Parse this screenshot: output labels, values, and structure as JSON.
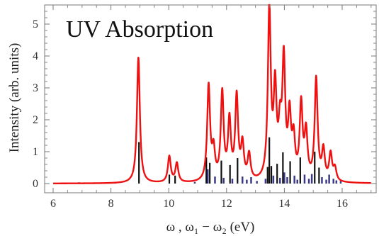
{
  "chart_data": {
    "type": "line",
    "title": "UV Absorption",
    "xlabel": "ω , ω₁ − ω₂ (eV)",
    "ylabel": "Intensity (arb. units)",
    "xlim": [
      6,
      17
    ],
    "ylim": [
      0,
      5.6
    ],
    "x_ticks": [
      6,
      8,
      10,
      12,
      14,
      16
    ],
    "y_ticks": [
      0,
      1,
      2,
      3,
      4,
      5
    ],
    "x_tick_labels": [
      "6",
      "8",
      "10",
      "12",
      "14",
      "16"
    ],
    "y_tick_labels": [
      "0",
      "1",
      "2",
      "3",
      "4",
      "5"
    ],
    "grid": false,
    "colors": {
      "spectrum": "#ee1111",
      "stick_bright": "#111111",
      "stick_dark": "#3a3a88"
    },
    "series": [
      {
        "type": "lorentzian_spectrum",
        "line_width_ev": 0.06,
        "peaks": [
          {
            "x": 8.95,
            "y": 3.95
          },
          {
            "x": 10.02,
            "y": 0.82
          },
          {
            "x": 10.28,
            "y": 0.6
          },
          {
            "x": 11.38,
            "y": 2.98
          },
          {
            "x": 11.55,
            "y": 0.9
          },
          {
            "x": 11.85,
            "y": 2.75
          },
          {
            "x": 12.1,
            "y": 1.85
          },
          {
            "x": 12.35,
            "y": 2.62
          },
          {
            "x": 12.55,
            "y": 1.1
          },
          {
            "x": 12.78,
            "y": 0.8
          },
          {
            "x": 13.48,
            "y": 5.35
          },
          {
            "x": 13.68,
            "y": 2.75
          },
          {
            "x": 13.85,
            "y": 1.4
          },
          {
            "x": 13.98,
            "y": 3.65
          },
          {
            "x": 14.18,
            "y": 1.9
          },
          {
            "x": 14.32,
            "y": 1.2
          },
          {
            "x": 14.58,
            "y": 2.35
          },
          {
            "x": 14.75,
            "y": 1.45
          },
          {
            "x": 15.1,
            "y": 3.2
          },
          {
            "x": 15.35,
            "y": 0.95
          },
          {
            "x": 15.6,
            "y": 0.85
          },
          {
            "x": 15.75,
            "y": 0.4
          }
        ]
      },
      {
        "type": "sticks",
        "bright": [
          {
            "x": 8.97,
            "y": 1.3
          },
          {
            "x": 10.02,
            "y": 0.28
          },
          {
            "x": 10.22,
            "y": 0.25
          },
          {
            "x": 11.3,
            "y": 0.82
          },
          {
            "x": 11.42,
            "y": 0.65
          },
          {
            "x": 11.82,
            "y": 0.72
          },
          {
            "x": 12.12,
            "y": 0.58
          },
          {
            "x": 12.38,
            "y": 0.8
          },
          {
            "x": 13.42,
            "y": 0.52
          },
          {
            "x": 13.48,
            "y": 1.45
          },
          {
            "x": 13.55,
            "y": 0.55
          },
          {
            "x": 13.75,
            "y": 0.62
          },
          {
            "x": 13.95,
            "y": 0.98
          },
          {
            "x": 14.2,
            "y": 0.7
          },
          {
            "x": 14.55,
            "y": 0.82
          },
          {
            "x": 15.05,
            "y": 1.0
          },
          {
            "x": 15.2,
            "y": 0.5
          }
        ],
        "dark": [
          {
            "x": 6.9,
            "y": 0.04
          },
          {
            "x": 8.15,
            "y": 0.03
          },
          {
            "x": 10.9,
            "y": 0.05
          },
          {
            "x": 11.35,
            "y": 0.45
          },
          {
            "x": 11.6,
            "y": 0.22
          },
          {
            "x": 11.9,
            "y": 0.18
          },
          {
            "x": 12.2,
            "y": 0.15
          },
          {
            "x": 12.55,
            "y": 0.22
          },
          {
            "x": 12.7,
            "y": 0.12
          },
          {
            "x": 12.85,
            "y": 0.2
          },
          {
            "x": 13.05,
            "y": 0.08
          },
          {
            "x": 13.35,
            "y": 0.15
          },
          {
            "x": 13.62,
            "y": 0.25
          },
          {
            "x": 13.85,
            "y": 0.18
          },
          {
            "x": 14.0,
            "y": 0.35
          },
          {
            "x": 14.1,
            "y": 0.2
          },
          {
            "x": 14.35,
            "y": 0.25
          },
          {
            "x": 14.45,
            "y": 0.12
          },
          {
            "x": 14.7,
            "y": 0.28
          },
          {
            "x": 14.85,
            "y": 0.15
          },
          {
            "x": 14.95,
            "y": 0.3
          },
          {
            "x": 15.3,
            "y": 0.2
          },
          {
            "x": 15.45,
            "y": 0.12
          },
          {
            "x": 15.55,
            "y": 0.28
          },
          {
            "x": 15.7,
            "y": 0.15
          },
          {
            "x": 15.8,
            "y": 0.1
          },
          {
            "x": 15.95,
            "y": 0.08
          }
        ]
      }
    ]
  }
}
